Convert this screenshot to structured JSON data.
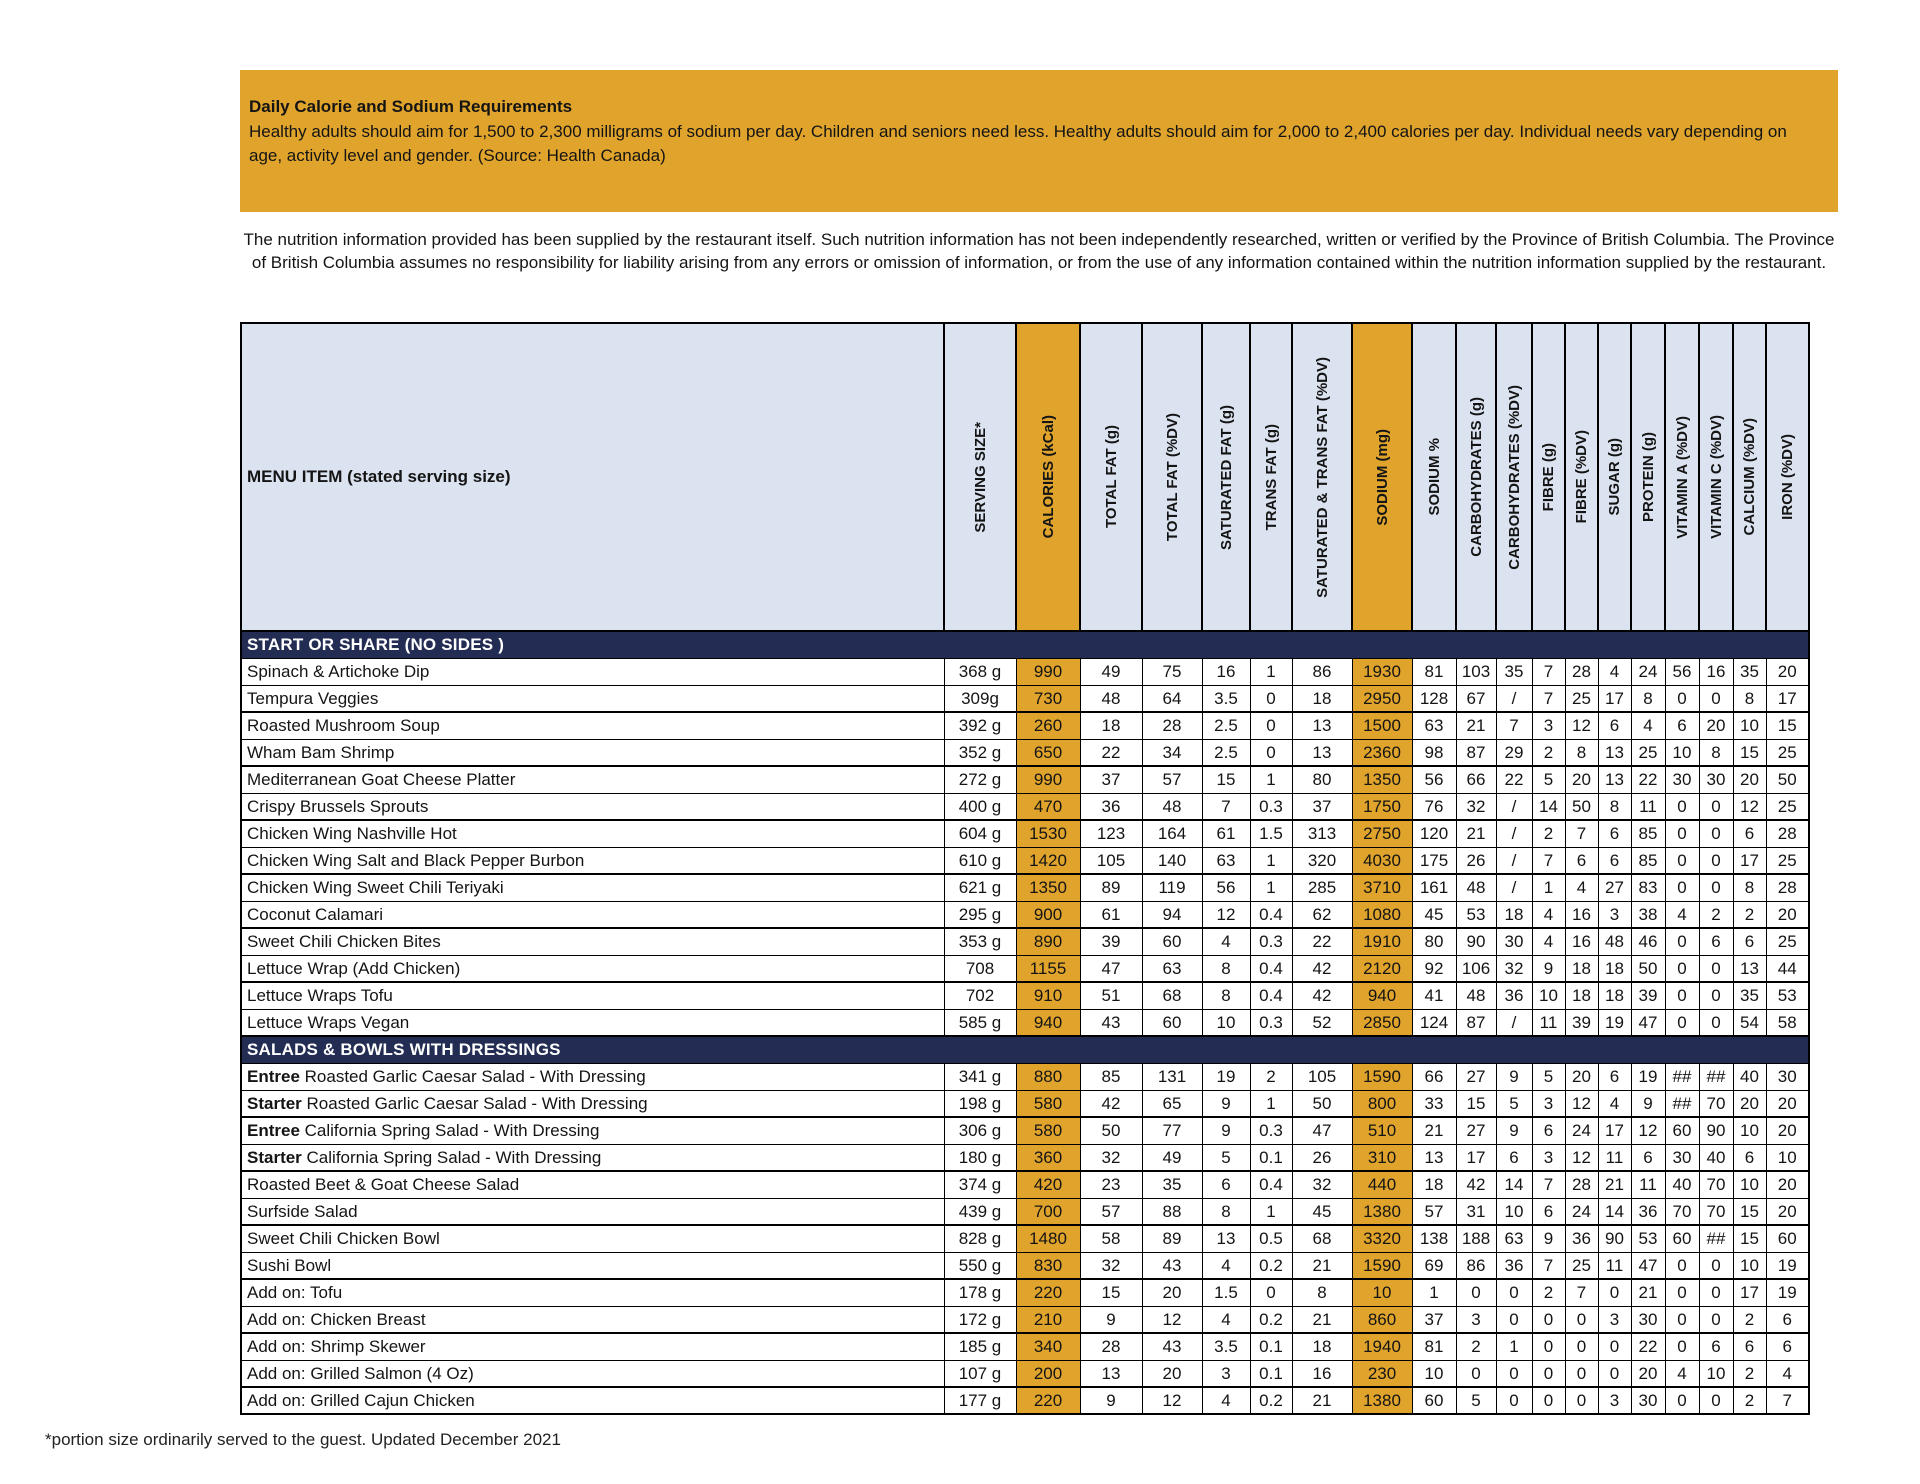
{
  "colors": {
    "gold": "#E0A42C",
    "navy": "#232C52",
    "header_bg": "#DCE3F0"
  },
  "info_box": {
    "title": "Daily Calorie and Sodium Requirements",
    "body": "Healthy adults should aim for 1,500 to 2,300 milligrams of sodium per day. Children and seniors need less. Healthy adults should aim for 2,000 to 2,400 calories per day. Individual needs vary depending on age, activity level and gender. (Source: Health Canada)"
  },
  "disclaimer": "The nutrition information provided has been supplied by the restaurant itself. Such nutrition information has not been independently researched, written or verified by the Province of British Columbia. The Province of British Columbia assumes no responsibility for liability arising from any errors or omission of information, or from the use of any information contained within the nutrition information supplied by the restaurant.",
  "footer_note": "*portion size ordinarily served to the guest. Updated December 2021",
  "table": {
    "menu_header": "MENU ITEM (stated serving size)",
    "columns": [
      {
        "key": "serving-size",
        "label": "SERVING SIZE*",
        "highlight": false
      },
      {
        "key": "calories",
        "label": "CALORIES  (kCal)",
        "highlight": true
      },
      {
        "key": "total-fat-g",
        "label": "TOTAL FAT (g)",
        "highlight": false
      },
      {
        "key": "total-fat-dv",
        "label": "TOTAL FAT (%DV)",
        "highlight": false
      },
      {
        "key": "saturated-fat-g",
        "label": "SATURATED FAT (g)",
        "highlight": false
      },
      {
        "key": "trans-fat-g",
        "label": "TRANS FAT (g)",
        "highlight": false
      },
      {
        "key": "saturated-trans-fat-dv",
        "label": "SATURATED & TRANS FAT (%DV)",
        "highlight": false
      },
      {
        "key": "sodium-mg",
        "label": "SODIUM (mg)",
        "highlight": true
      },
      {
        "key": "sodium-pct",
        "label": "SODIUM %",
        "highlight": false
      },
      {
        "key": "carbohydrates-g",
        "label": "CARBOHYDRATES (g)",
        "highlight": false
      },
      {
        "key": "carbohydrates-dv",
        "label": "CARBOHYDRATES (%DV)",
        "highlight": false
      },
      {
        "key": "fibre-g",
        "label": "FIBRE (g)",
        "highlight": false
      },
      {
        "key": "fibre-dv",
        "label": "FIBRE (%DV)",
        "highlight": false
      },
      {
        "key": "sugar-g",
        "label": "SUGAR (g)",
        "highlight": false
      },
      {
        "key": "protein-g",
        "label": "PROTEIN (g)",
        "highlight": false
      },
      {
        "key": "vitamin-a-dv",
        "label": "VITAMIN A (%DV)",
        "highlight": false
      },
      {
        "key": "vitamin-c-dv",
        "label": "VITAMIN C (%DV)",
        "highlight": false
      },
      {
        "key": "calcium-dv",
        "label": "CALCIUM (%DV)",
        "highlight": false
      },
      {
        "key": "iron-dv",
        "label": "IRON (%DV)",
        "highlight": false
      }
    ],
    "sections": [
      {
        "title": "START OR SHARE (NO SIDES )",
        "rows": [
          {
            "prefix": "",
            "name": "Spinach & Artichoke Dip",
            "values": [
              "368 g",
              "990",
              "49",
              "75",
              "16",
              "1",
              "86",
              "1930",
              "81",
              "103",
              "35",
              "7",
              "28",
              "4",
              "24",
              "56",
              "16",
              "35",
              "20"
            ]
          },
          {
            "prefix": "",
            "name": "Tempura Veggies",
            "values": [
              "309g",
              "730",
              "48",
              "64",
              "3.5",
              "0",
              "18",
              "2950",
              "128",
              "67",
              "/",
              "7",
              "25",
              "17",
              "8",
              "0",
              "0",
              "8",
              "17"
            ]
          },
          {
            "prefix": "",
            "name": "Roasted Mushroom Soup",
            "values": [
              "392 g",
              "260",
              "18",
              "28",
              "2.5",
              "0",
              "13",
              "1500",
              "63",
              "21",
              "7",
              "3",
              "12",
              "6",
              "4",
              "6",
              "20",
              "10",
              "15"
            ]
          },
          {
            "prefix": "",
            "name": "Wham Bam Shrimp",
            "values": [
              "352 g",
              "650",
              "22",
              "34",
              "2.5",
              "0",
              "13",
              "2360",
              "98",
              "87",
              "29",
              "2",
              "8",
              "13",
              "25",
              "10",
              "8",
              "15",
              "25"
            ]
          },
          {
            "prefix": "",
            "name": "Mediterranean Goat Cheese Platter",
            "values": [
              "272 g",
              "990",
              "37",
              "57",
              "15",
              "1",
              "80",
              "1350",
              "56",
              "66",
              "22",
              "5",
              "20",
              "13",
              "22",
              "30",
              "30",
              "20",
              "50"
            ]
          },
          {
            "prefix": "",
            "name": "Crispy Brussels Sprouts",
            "values": [
              "400 g",
              "470",
              "36",
              "48",
              "7",
              "0.3",
              "37",
              "1750",
              "76",
              "32",
              "/",
              "14",
              "50",
              "8",
              "11",
              "0",
              "0",
              "12",
              "25"
            ]
          },
          {
            "prefix": "",
            "name": "Chicken Wing Nashville Hot",
            "values": [
              "604 g",
              "1530",
              "123",
              "164",
              "61",
              "1.5",
              "313",
              "2750",
              "120",
              "21",
              "/",
              "2",
              "7",
              "6",
              "85",
              "0",
              "0",
              "6",
              "28"
            ]
          },
          {
            "prefix": "",
            "name": "Chicken Wing Salt and Black Pepper Burbon",
            "values": [
              "610 g",
              "1420",
              "105",
              "140",
              "63",
              "1",
              "320",
              "4030",
              "175",
              "26",
              "/",
              "7",
              "6",
              "6",
              "85",
              "0",
              "0",
              "17",
              "25"
            ]
          },
          {
            "prefix": "",
            "name": "Chicken Wing Sweet Chili Teriyaki",
            "values": [
              "621 g",
              "1350",
              "89",
              "119",
              "56",
              "1",
              "285",
              "3710",
              "161",
              "48",
              "/",
              "1",
              "4",
              "27",
              "83",
              "0",
              "0",
              "8",
              "28"
            ]
          },
          {
            "prefix": "",
            "name": "Coconut Calamari",
            "values": [
              "295 g",
              "900",
              "61",
              "94",
              "12",
              "0.4",
              "62",
              "1080",
              "45",
              "53",
              "18",
              "4",
              "16",
              "3",
              "38",
              "4",
              "2",
              "2",
              "20"
            ]
          },
          {
            "prefix": "",
            "name": "Sweet Chili Chicken Bites",
            "values": [
              "353 g",
              "890",
              "39",
              "60",
              "4",
              "0.3",
              "22",
              "1910",
              "80",
              "90",
              "30",
              "4",
              "16",
              "48",
              "46",
              "0",
              "6",
              "6",
              "25"
            ]
          },
          {
            "prefix": "",
            "name": "Lettuce Wrap (Add Chicken)",
            "values": [
              "708",
              "1155",
              "47",
              "63",
              "8",
              "0.4",
              "42",
              "2120",
              "92",
              "106",
              "32",
              "9",
              "18",
              "18",
              "50",
              "0",
              "0",
              "13",
              "44"
            ]
          },
          {
            "prefix": "",
            "name": "Lettuce Wraps Tofu",
            "values": [
              "702",
              "910",
              "51",
              "68",
              "8",
              "0.4",
              "42",
              "940",
              "41",
              "48",
              "36",
              "10",
              "18",
              "18",
              "39",
              "0",
              "0",
              "35",
              "53"
            ]
          },
          {
            "prefix": "",
            "name": "Lettuce Wraps Vegan",
            "values": [
              "585 g",
              "940",
              "43",
              "60",
              "10",
              "0.3",
              "52",
              "2850",
              "124",
              "87",
              "/",
              "11",
              "39",
              "19",
              "47",
              "0",
              "0",
              "54",
              "58"
            ]
          }
        ]
      },
      {
        "title": "SALADS & BOWLS WITH DRESSINGS",
        "rows": [
          {
            "prefix": "Entree",
            "name": "Roasted Garlic Caesar Salad - With Dressing",
            "values": [
              "341 g",
              "880",
              "85",
              "131",
              "19",
              "2",
              "105",
              "1590",
              "66",
              "27",
              "9",
              "5",
              "20",
              "6",
              "19",
              "##",
              "##",
              "40",
              "30"
            ]
          },
          {
            "prefix": "Starter",
            "name": "Roasted Garlic Caesar Salad - With Dressing",
            "values": [
              "198 g",
              "580",
              "42",
              "65",
              "9",
              "1",
              "50",
              "800",
              "33",
              "15",
              "5",
              "3",
              "12",
              "4",
              "9",
              "##",
              "70",
              "20",
              "20"
            ]
          },
          {
            "prefix": "Entree",
            "name": "California Spring Salad - With Dressing",
            "values": [
              "306 g",
              "580",
              "50",
              "77",
              "9",
              "0.3",
              "47",
              "510",
              "21",
              "27",
              "9",
              "6",
              "24",
              "17",
              "12",
              "60",
              "90",
              "10",
              "20"
            ]
          },
          {
            "prefix": "Starter",
            "name": "California Spring Salad - With Dressing",
            "values": [
              "180 g",
              "360",
              "32",
              "49",
              "5",
              "0.1",
              "26",
              "310",
              "13",
              "17",
              "6",
              "3",
              "12",
              "11",
              "6",
              "30",
              "40",
              "6",
              "10"
            ]
          },
          {
            "prefix": "",
            "name": "Roasted Beet & Goat Cheese Salad",
            "values": [
              "374 g",
              "420",
              "23",
              "35",
              "6",
              "0.4",
              "32",
              "440",
              "18",
              "42",
              "14",
              "7",
              "28",
              "21",
              "11",
              "40",
              "70",
              "10",
              "20"
            ]
          },
          {
            "prefix": "",
            "name": "Surfside Salad",
            "values": [
              "439 g",
              "700",
              "57",
              "88",
              "8",
              "1",
              "45",
              "1380",
              "57",
              "31",
              "10",
              "6",
              "24",
              "14",
              "36",
              "70",
              "70",
              "15",
              "20"
            ]
          },
          {
            "prefix": "",
            "name": "Sweet Chili Chicken Bowl",
            "values": [
              "828 g",
              "1480",
              "58",
              "89",
              "13",
              "0.5",
              "68",
              "3320",
              "138",
              "188",
              "63",
              "9",
              "36",
              "90",
              "53",
              "60",
              "##",
              "15",
              "60"
            ]
          },
          {
            "prefix": "",
            "name": "Sushi Bowl",
            "values": [
              "550 g",
              "830",
              "32",
              "43",
              "4",
              "0.2",
              "21",
              "1590",
              "69",
              "86",
              "36",
              "7",
              "25",
              "11",
              "47",
              "0",
              "0",
              "10",
              "19"
            ]
          },
          {
            "prefix": "",
            "name": "Add on: Tofu",
            "values": [
              "178 g",
              "220",
              "15",
              "20",
              "1.5",
              "0",
              "8",
              "10",
              "1",
              "0",
              "0",
              "2",
              "7",
              "0",
              "21",
              "0",
              "0",
              "17",
              "19"
            ]
          },
          {
            "prefix": "",
            "name": "Add on: Chicken Breast",
            "values": [
              "172 g",
              "210",
              "9",
              "12",
              "4",
              "0.2",
              "21",
              "860",
              "37",
              "3",
              "0",
              "0",
              "0",
              "3",
              "30",
              "0",
              "0",
              "2",
              "6"
            ]
          },
          {
            "prefix": "",
            "name": "Add on: Shrimp Skewer",
            "values": [
              "185 g",
              "340",
              "28",
              "43",
              "3.5",
              "0.1",
              "18",
              "1940",
              "81",
              "2",
              "1",
              "0",
              "0",
              "0",
              "22",
              "0",
              "6",
              "6",
              "6"
            ]
          },
          {
            "prefix": "",
            "name": "Add on: Grilled Salmon (4 Oz)",
            "values": [
              "107 g",
              "200",
              "13",
              "20",
              "3",
              "0.1",
              "16",
              "230",
              "10",
              "0",
              "0",
              "0",
              "0",
              "0",
              "20",
              "4",
              "10",
              "2",
              "4"
            ]
          },
          {
            "prefix": "",
            "name": "Add on: Grilled Cajun Chicken",
            "values": [
              "177 g",
              "220",
              "9",
              "12",
              "4",
              "0.2",
              "21",
              "1380",
              "60",
              "5",
              "0",
              "0",
              "0",
              "3",
              "30",
              "0",
              "0",
              "2",
              "7"
            ]
          }
        ]
      }
    ]
  }
}
